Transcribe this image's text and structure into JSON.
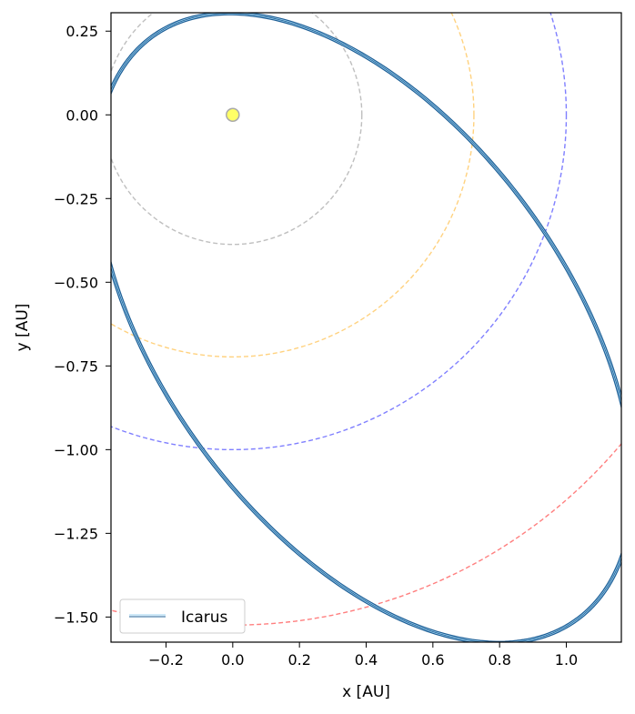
{
  "chart_data": {
    "type": "line",
    "xlabel": "x [AU]",
    "ylabel": "y [AU]",
    "xlim": [
      -0.365,
      1.165
    ],
    "ylim": [
      -1.575,
      0.305
    ],
    "x_ticks": [
      -0.2,
      0.0,
      0.2,
      0.4,
      0.6,
      0.8,
      1.0
    ],
    "x_tick_labels": [
      "−0.2",
      "0.0",
      "0.2",
      "0.4",
      "0.6",
      "0.8",
      "1.0"
    ],
    "y_ticks": [
      0.25,
      0.0,
      -0.25,
      -0.5,
      -0.75,
      -1.0,
      -1.25,
      -1.5
    ],
    "y_tick_labels": [
      "0.25",
      "0.00",
      "−0.25",
      "−0.50",
      "−0.75",
      "−1.00",
      "−1.25",
      "−1.50"
    ],
    "grid": false,
    "legend_position": "bottom-left",
    "sun": {
      "x": 0.0,
      "y": 0.0,
      "fill": "#ffff66",
      "edge": "#aaaaaa"
    },
    "planet_orbits": [
      {
        "radius": 0.387,
        "color": "#808080"
      },
      {
        "radius": 0.723,
        "color": "#ffa500"
      },
      {
        "radius": 1.0,
        "color": "#0000ff"
      },
      {
        "radius": 1.524,
        "color": "#ff0000"
      }
    ],
    "series": [
      {
        "name": "Icarus",
        "color_dark": "#1f5f96",
        "color_light": "#9fd3f0",
        "center": [
          0.395,
          -0.637
        ],
        "semi_major_axis": 1.0785,
        "eccentricity": 0.827,
        "major_axis_angle_deg": -53.7
      }
    ]
  }
}
